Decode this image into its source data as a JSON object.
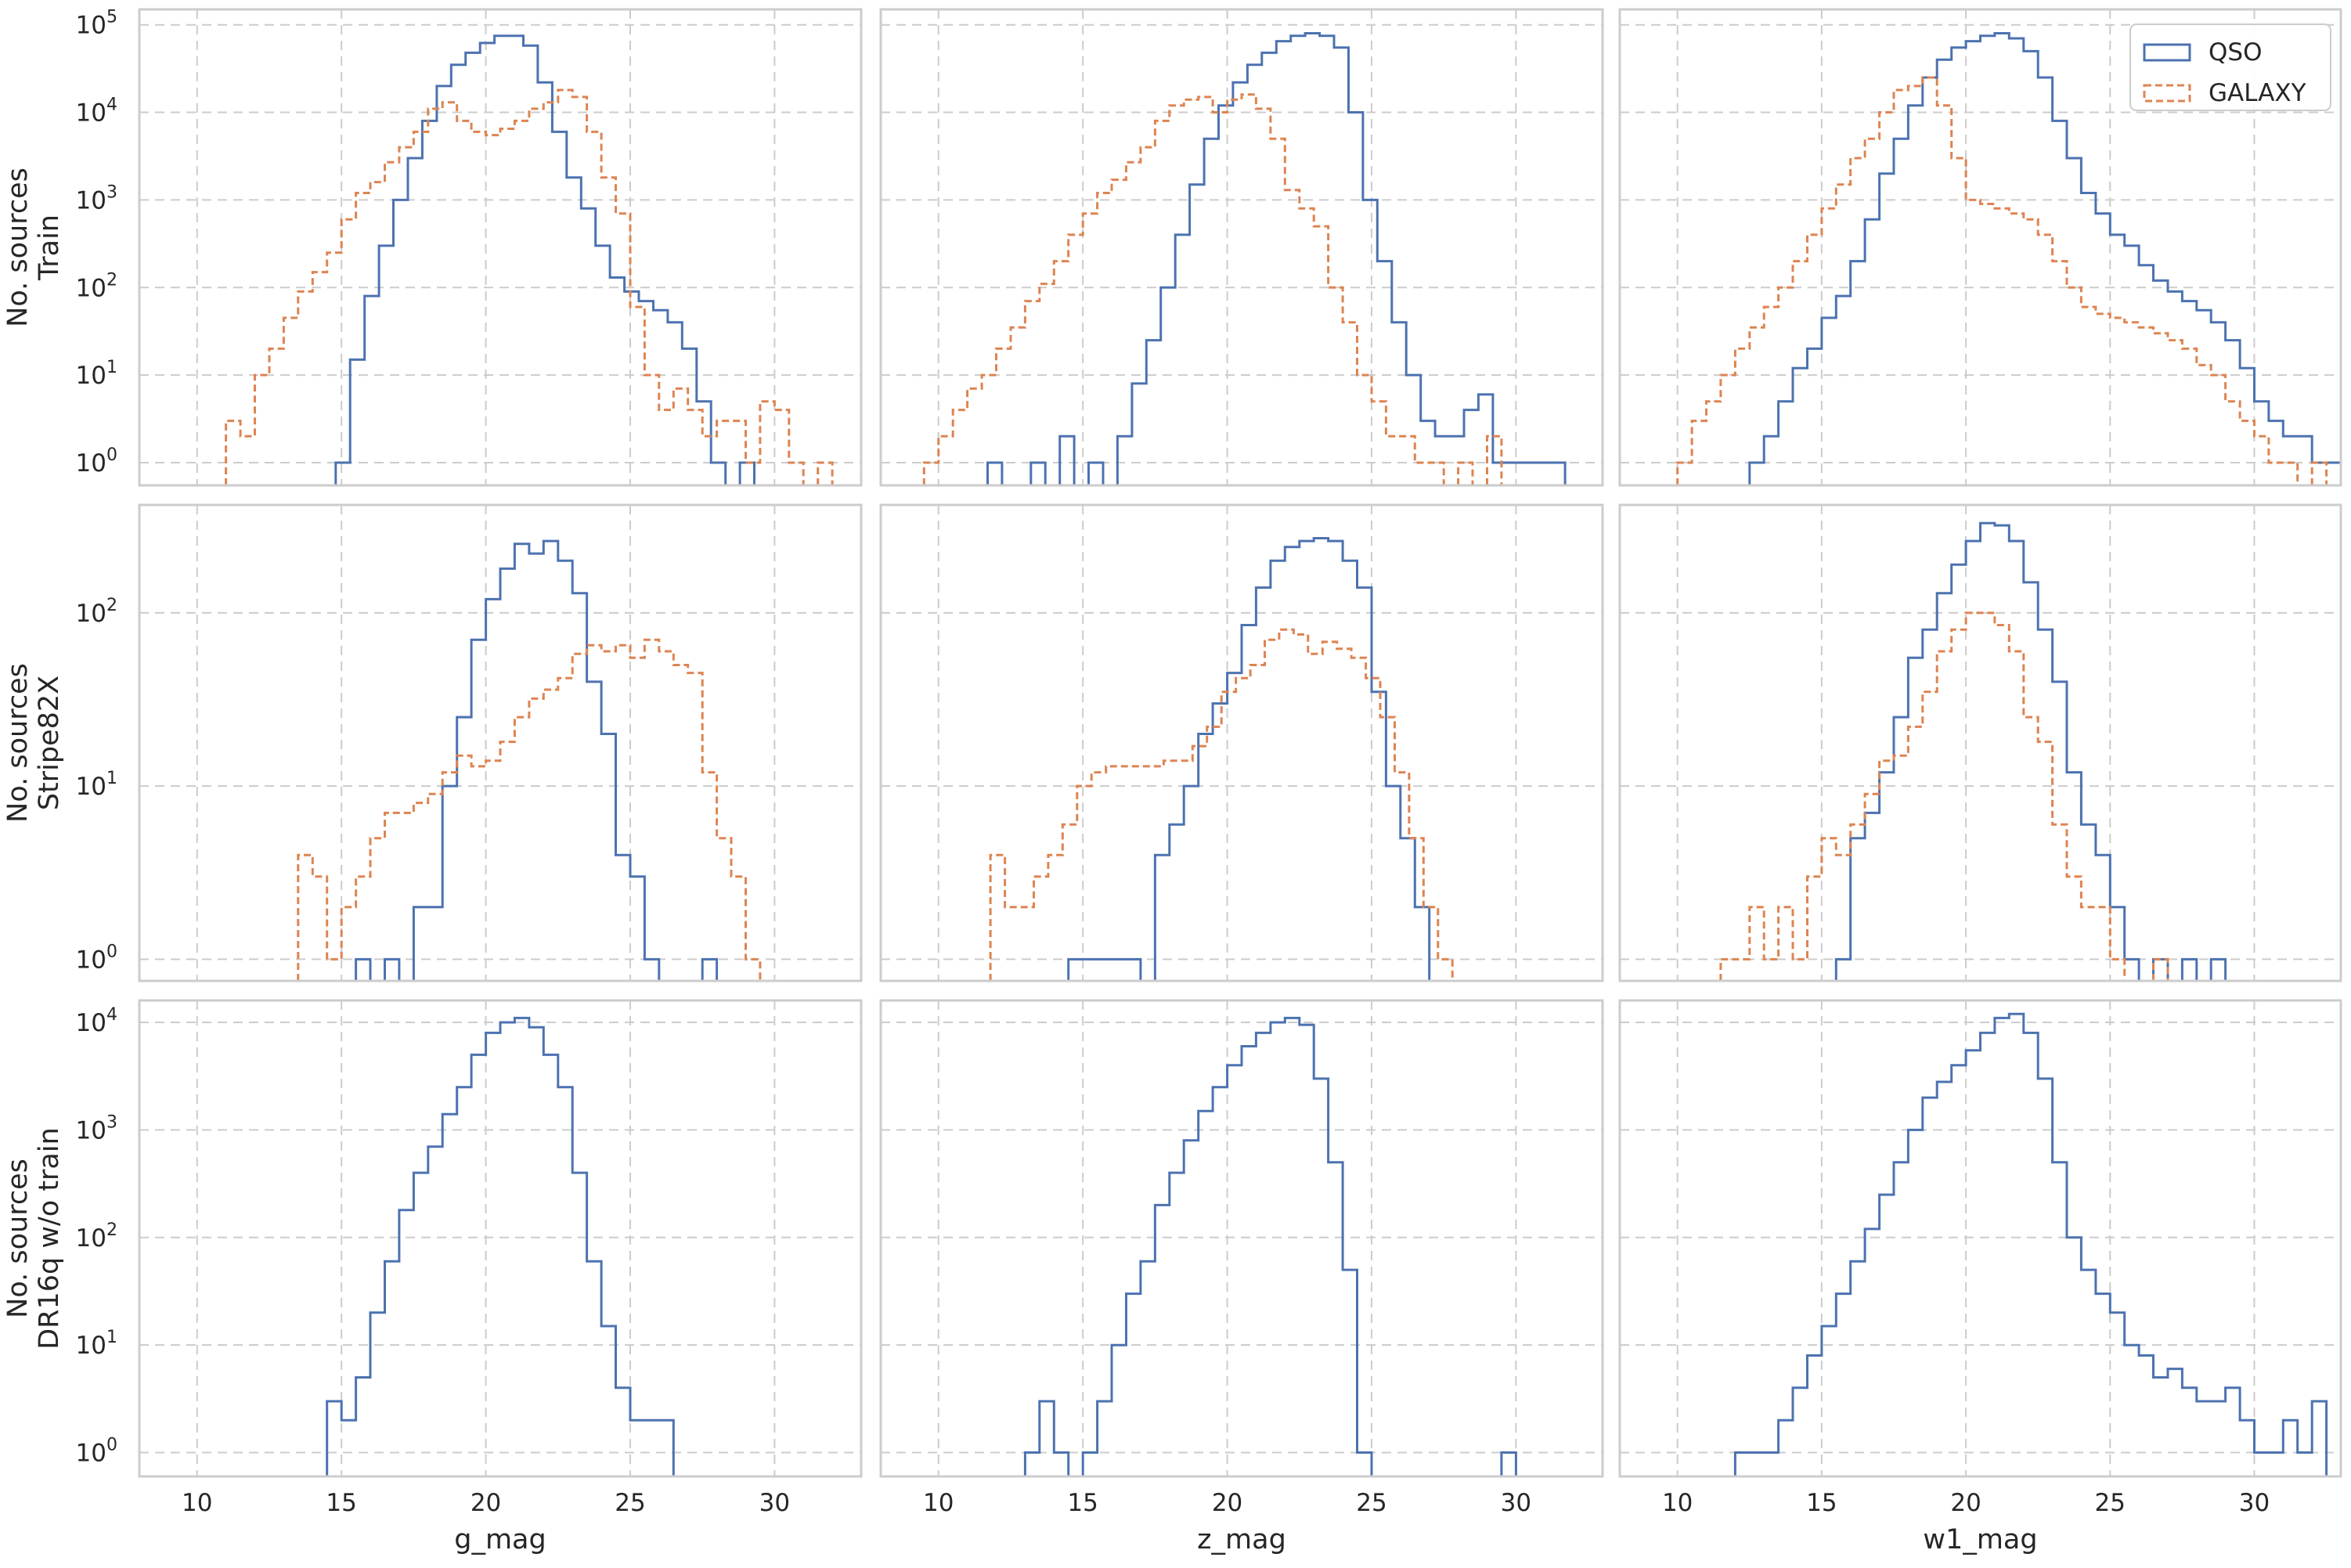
{
  "colors": {
    "qso": "#4c72b0",
    "galaxy": "#dd8452",
    "grid": "#cccccc",
    "frame": "#cccccc",
    "text": "#262626"
  },
  "chart_data": {
    "type": "histogram-grid",
    "y_scale": "log",
    "grid": true,
    "legend": {
      "placement": "top-right of the top-right panel",
      "entries": [
        "QSO",
        "GALAXY"
      ]
    },
    "x_ticks": [
      10,
      15,
      20,
      25,
      30
    ],
    "xlim": [
      8,
      33
    ],
    "bin_width": 0.5,
    "columns": [
      {
        "xlabel": "g_mag"
      },
      {
        "xlabel": "z_mag"
      },
      {
        "xlabel": "w1_mag"
      }
    ],
    "rows": [
      {
        "ylabel_lines": [
          "No. sources",
          "Train"
        ],
        "ylim": [
          0.55,
          150000
        ],
        "y_ticks": [
          {
            "value": 1,
            "base": "10",
            "exp": "0"
          },
          {
            "value": 10,
            "base": "10",
            "exp": "1"
          },
          {
            "value": 100,
            "base": "10",
            "exp": "2"
          },
          {
            "value": 1000,
            "base": "10",
            "exp": "3"
          },
          {
            "value": 10000,
            "base": "10",
            "exp": "4"
          },
          {
            "value": 100000,
            "base": "10",
            "exp": "5"
          }
        ]
      },
      {
        "ylabel_lines": [
          "No. sources",
          "Stripe82X"
        ],
        "ylim": [
          0.75,
          420
        ],
        "y_ticks": [
          {
            "value": 1,
            "base": "10",
            "exp": "0"
          },
          {
            "value": 10,
            "base": "10",
            "exp": "1"
          },
          {
            "value": 100,
            "base": "10",
            "exp": "2"
          }
        ]
      },
      {
        "ylabel_lines": [
          "No. sources",
          "DR16q w/o train"
        ],
        "ylim": [
          0.6,
          16000
        ],
        "y_ticks": [
          {
            "value": 1,
            "base": "10",
            "exp": "0"
          },
          {
            "value": 10,
            "base": "10",
            "exp": "1"
          },
          {
            "value": 100,
            "base": "10",
            "exp": "2"
          },
          {
            "value": 1000,
            "base": "10",
            "exp": "3"
          },
          {
            "value": 10000,
            "base": "10",
            "exp": "4"
          }
        ]
      }
    ],
    "panels": [
      {
        "row": 0,
        "col": 0,
        "series": [
          {
            "name": "QSO",
            "start": 14.8,
            "values": [
              1,
              15,
              80,
              300,
              1000,
              3000,
              8000,
              20000,
              35000,
              48000,
              62000,
              75000,
              75000,
              58000,
              22000,
              6000,
              1800,
              800,
              300,
              130,
              90,
              70,
              55,
              40,
              20,
              5,
              1,
              0,
              1
            ]
          },
          {
            "name": "GALAXY",
            "start": 11.0,
            "values": [
              3,
              2,
              10,
              20,
              45,
              90,
              150,
              250,
              600,
              1200,
              1600,
              2700,
              4000,
              6000,
              11000,
              13000,
              8000,
              6000,
              5500,
              6500,
              8000,
              11000,
              13000,
              18000,
              15000,
              6000,
              1800,
              700,
              60,
              10,
              4,
              7,
              4,
              2,
              3,
              3,
              1,
              5,
              4,
              1,
              0,
              1
            ]
          }
        ]
      },
      {
        "row": 0,
        "col": 1,
        "series": [
          {
            "name": "QSO",
            "start": 11.7,
            "values": [
              1,
              0,
              0,
              1,
              0,
              2,
              0,
              1,
              0,
              2,
              8,
              25,
              100,
              400,
              1500,
              5000,
              12000,
              22000,
              35000,
              48000,
              65000,
              75000,
              80000,
              75000,
              55000,
              10000,
              1000,
              200,
              40,
              10,
              3,
              2,
              2,
              4,
              6,
              1,
              1,
              1,
              1,
              1
            ]
          },
          {
            "name": "GALAXY",
            "start": 9.5,
            "values": [
              1,
              2,
              4,
              7,
              10,
              20,
              35,
              70,
              110,
              200,
              400,
              700,
              1200,
              1700,
              2700,
              4000,
              8000,
              12000,
              14000,
              15000,
              10000,
              14000,
              16000,
              11000,
              5000,
              1300,
              800,
              500,
              100,
              40,
              10,
              5,
              2,
              2,
              1,
              1,
              0,
              1,
              0,
              2
            ]
          }
        ]
      },
      {
        "row": 0,
        "col": 2,
        "series": [
          {
            "name": "QSO",
            "start": 12.5,
            "values": [
              1,
              2,
              5,
              12,
              20,
              45,
              80,
              200,
              600,
              2000,
              5000,
              12000,
              25000,
              40000,
              55000,
              65000,
              75000,
              80000,
              70000,
              50000,
              25000,
              8000,
              3000,
              1200,
              700,
              400,
              300,
              180,
              120,
              90,
              70,
              55,
              40,
              25,
              12,
              5,
              3,
              2,
              2,
              1,
              1,
              0
            ]
          },
          {
            "name": "GALAXY",
            "start": 10.0,
            "values": [
              1,
              3,
              5,
              10,
              20,
              35,
              60,
              100,
              200,
              400,
              800,
              1500,
              3000,
              5000,
              10000,
              18000,
              20000,
              25000,
              12000,
              3000,
              1000,
              900,
              800,
              700,
              600,
              400,
              200,
              100,
              60,
              50,
              45,
              40,
              35,
              30,
              25,
              20,
              13,
              10,
              5,
              3,
              2,
              1,
              1,
              0,
              1,
              0
            ]
          }
        ]
      },
      {
        "row": 1,
        "col": 0,
        "series": [
          {
            "name": "QSO",
            "start": 15.5,
            "values": [
              1,
              0,
              1,
              0,
              2,
              2,
              10,
              25,
              70,
              120,
              180,
              250,
              220,
              260,
              200,
              130,
              40,
              20,
              4,
              3,
              1,
              0,
              0,
              0,
              1
            ]
          },
          {
            "name": "GALAXY",
            "start": 13.5,
            "values": [
              4,
              3,
              1,
              2,
              3,
              5,
              7,
              7,
              8,
              9,
              12,
              15,
              13,
              14,
              18,
              25,
              32,
              36,
              42,
              58,
              65,
              60,
              65,
              55,
              70,
              60,
              50,
              45,
              12,
              5,
              3,
              1
            ]
          }
        ]
      },
      {
        "row": 1,
        "col": 1,
        "series": [
          {
            "name": "QSO",
            "start": 14.5,
            "values": [
              1,
              1,
              1,
              1,
              1,
              0,
              4,
              6,
              10,
              20,
              30,
              45,
              85,
              140,
              200,
              240,
              260,
              270,
              260,
              200,
              140,
              35,
              10,
              5,
              2
            ]
          },
          {
            "name": "GALAXY",
            "start": 11.8,
            "values": [
              4,
              2,
              2,
              3,
              4,
              6,
              10,
              12,
              13,
              13,
              13,
              13,
              14,
              14,
              17,
              22,
              35,
              42,
              50,
              70,
              80,
              75,
              58,
              68,
              62,
              55,
              42,
              25,
              12,
              5,
              2,
              1
            ]
          }
        ]
      },
      {
        "row": 1,
        "col": 2,
        "series": [
          {
            "name": "QSO",
            "start": 15.5,
            "values": [
              1,
              5,
              7,
              12,
              25,
              55,
              80,
              130,
              190,
              260,
              330,
              320,
              260,
              150,
              80,
              40,
              12,
              6,
              4,
              2,
              1,
              0,
              1,
              0,
              1,
              0,
              1
            ]
          },
          {
            "name": "GALAXY",
            "start": 11.5,
            "values": [
              1,
              1,
              2,
              1,
              2,
              1,
              3,
              5,
              4,
              6,
              9,
              14,
              15,
              22,
              35,
              60,
              80,
              100,
              100,
              85,
              60,
              25,
              18,
              6,
              3,
              2,
              2,
              1,
              0,
              0,
              1
            ]
          }
        ]
      },
      {
        "row": 2,
        "col": 0,
        "series": [
          {
            "name": "QSO",
            "start": 14.5,
            "values": [
              3,
              2,
              5,
              20,
              60,
              180,
              400,
              700,
              1400,
              2500,
              5000,
              8000,
              10000,
              11000,
              9000,
              5000,
              2500,
              400,
              60,
              15,
              4,
              2,
              2,
              2
            ]
          }
        ]
      },
      {
        "row": 2,
        "col": 1,
        "series": [
          {
            "name": "QSO",
            "start": 13.0,
            "values": [
              1,
              3,
              1,
              0,
              1,
              3,
              10,
              30,
              60,
              200,
              400,
              800,
              1500,
              2500,
              4000,
              6000,
              8000,
              10000,
              11000,
              9500,
              3000,
              500,
              50,
              1,
              0,
              0,
              0,
              0,
              0,
              0,
              0,
              0,
              0,
              1
            ]
          }
        ]
      },
      {
        "row": 2,
        "col": 2,
        "series": [
          {
            "name": "QSO",
            "start": 12.0,
            "values": [
              1,
              1,
              1,
              2,
              4,
              8,
              15,
              30,
              60,
              120,
              250,
              500,
              1000,
              2000,
              2800,
              4000,
              5500,
              8000,
              11000,
              12000,
              8000,
              3000,
              500,
              100,
              50,
              30,
              20,
              10,
              8,
              5,
              6,
              4,
              3,
              3,
              4,
              2,
              1,
              1,
              2,
              1,
              3
            ]
          }
        ]
      }
    ]
  }
}
